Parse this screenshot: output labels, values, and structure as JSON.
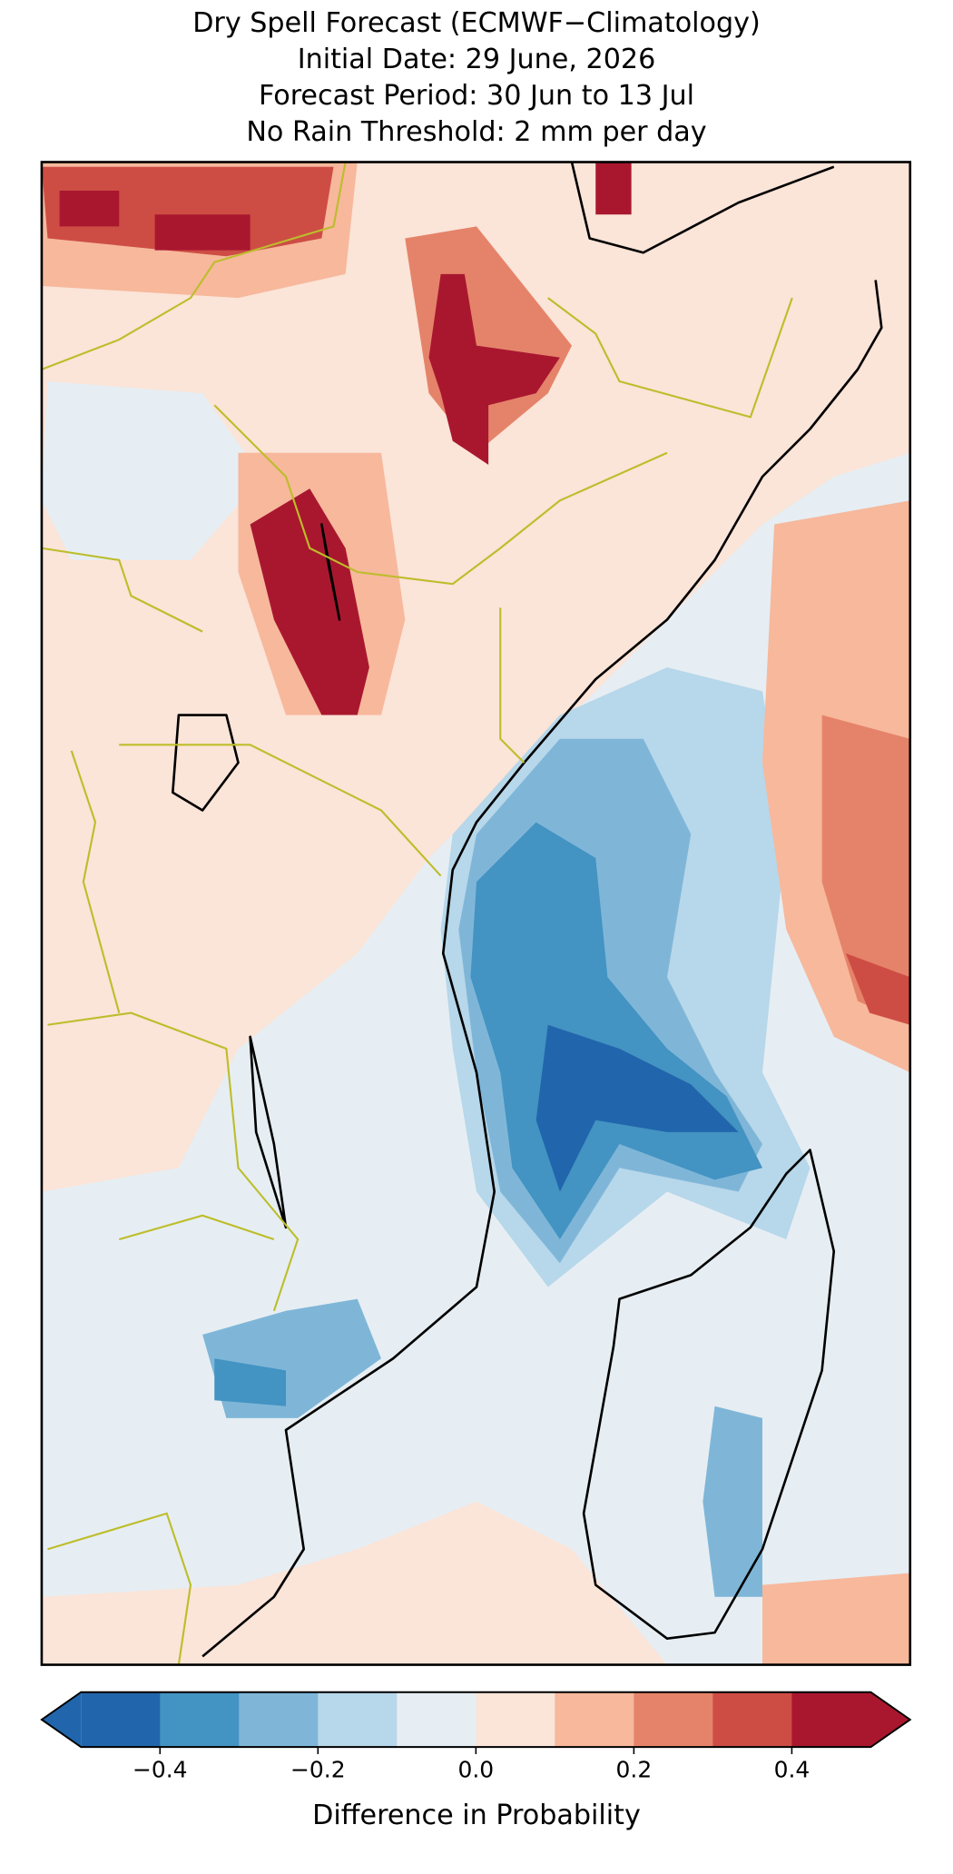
{
  "title": [
    "Dry Spell Forecast (ECMWF−Climatology)",
    "Initial Date: 29 June, 2026",
    "Forecast Period: 30 Jun to 13 Jul",
    "No Rain Threshold: 2 mm per day"
  ],
  "colorbar": {
    "label": "Difference in Probability",
    "bounds": [
      -0.5,
      -0.4,
      -0.3,
      -0.2,
      -0.1,
      0,
      0.1,
      0.2,
      0.3,
      0.4,
      0.5
    ],
    "colors": [
      "#2166ac",
      "#4393c3",
      "#7fb6d8",
      "#b7d7ea",
      "#e6eef3",
      "#fbe4d8",
      "#f7b89c",
      "#e5836a",
      "#cd4d45",
      "#a9172f"
    ],
    "extend": "both",
    "ticks": [
      {
        "value": -0.4,
        "label": "−0.4"
      },
      {
        "value": -0.2,
        "label": "−0.2"
      },
      {
        "value": 0,
        "label": "0.0"
      },
      0.2,
      0.4
    ]
  }
}
